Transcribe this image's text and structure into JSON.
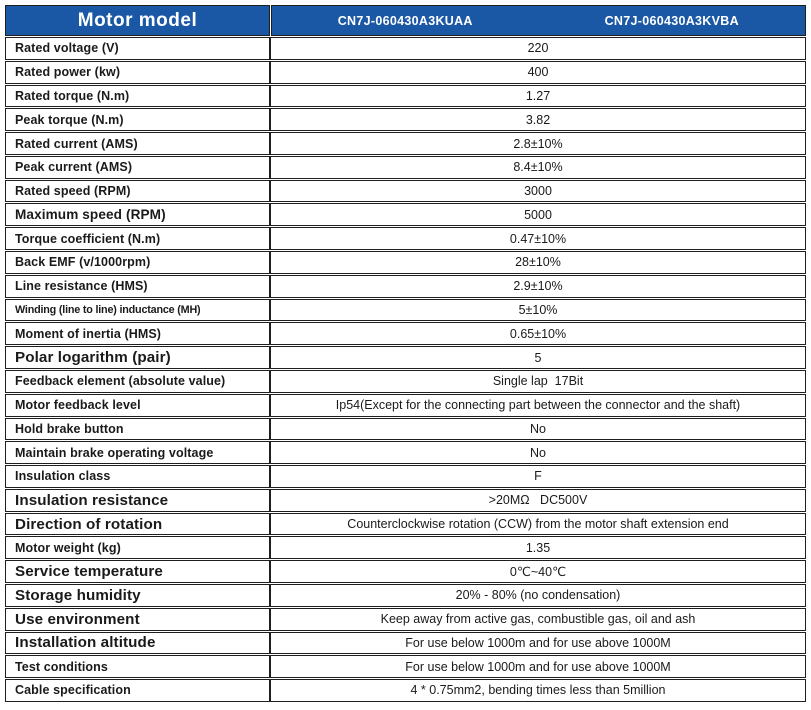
{
  "colors": {
    "header_bg": "#1a58a6",
    "header_text": "#ffffff",
    "border": "#1f1f1f",
    "text": "#1a1a1a"
  },
  "header": {
    "model_label": "Motor model",
    "models": [
      "CN7J-060430A3KUAA",
      "CN7J-060430A3KVBA"
    ]
  },
  "rows": [
    {
      "label": "Rated voltage (V)",
      "value": "220",
      "size": "n"
    },
    {
      "label": "Rated power (kw)",
      "value": "400",
      "size": "n"
    },
    {
      "label": "Rated torque (N.m)",
      "value": "1.27",
      "size": "n"
    },
    {
      "label": "Peak torque (N.m)",
      "value": "3.82",
      "size": "n"
    },
    {
      "label": "Rated current (AMS)",
      "value": "2.8±10%",
      "size": "n"
    },
    {
      "label": "Peak current (AMS)",
      "value": "8.4±10%",
      "size": "n"
    },
    {
      "label": "Rated speed (RPM)",
      "value": "3000",
      "size": "n"
    },
    {
      "label": "Maximum speed (RPM)",
      "value": "5000",
      "size": "m"
    },
    {
      "label": "Torque coefficient (N.m)",
      "value": "0.47±10%",
      "size": "n"
    },
    {
      "label": "Back EMF (v/1000rpm)",
      "value": "28±10%",
      "size": "n"
    },
    {
      "label": "Line resistance (HMS)",
      "value": "2.9±10%",
      "size": "n"
    },
    {
      "label": "Winding (line to line) inductance (MH)",
      "value": "5±10%",
      "size": "s"
    },
    {
      "label": "Moment of inertia (HMS)",
      "value": "0.65±10%",
      "size": "n"
    },
    {
      "label": "Polar logarithm (pair)",
      "value": "5",
      "size": "l"
    },
    {
      "label": "Feedback element (absolute value)",
      "value": "Single lap  17Bit",
      "size": "n"
    },
    {
      "label": "Motor feedback level",
      "value": "Ip54(Except for the connecting part between the connector and the shaft)",
      "size": "n"
    },
    {
      "label": "Hold brake button",
      "value": "No",
      "size": "n"
    },
    {
      "label": "Maintain brake operating voltage",
      "value": "No",
      "size": "n"
    },
    {
      "label": "Insulation class",
      "value": "F",
      "size": "n"
    },
    {
      "label": "Insulation resistance",
      "value": ">20MΩ   DC500V",
      "size": "l"
    },
    {
      "label": "Direction of rotation",
      "value": "Counterclockwise rotation (CCW) from the motor shaft extension end",
      "size": "l"
    },
    {
      "label": "Motor weight (kg)",
      "value": "1.35",
      "size": "n"
    },
    {
      "label": "Service temperature",
      "value": "0℃~40℃",
      "size": "l"
    },
    {
      "label": "Storage humidity",
      "value": "20% - 80% (no condensation)",
      "size": "l"
    },
    {
      "label": "Use environment",
      "value": "Keep away from active gas, combustible gas, oil and ash",
      "size": "l"
    },
    {
      "label": "Installation altitude",
      "value": "For use below 1000m and for use above 1000M",
      "size": "l"
    },
    {
      "label": "Test conditions",
      "value": "For use below 1000m and for use above 1000M",
      "size": "n"
    },
    {
      "label": "Cable specification",
      "value": "4 * 0.75mm2, bending times less than 5million",
      "size": "n"
    }
  ]
}
